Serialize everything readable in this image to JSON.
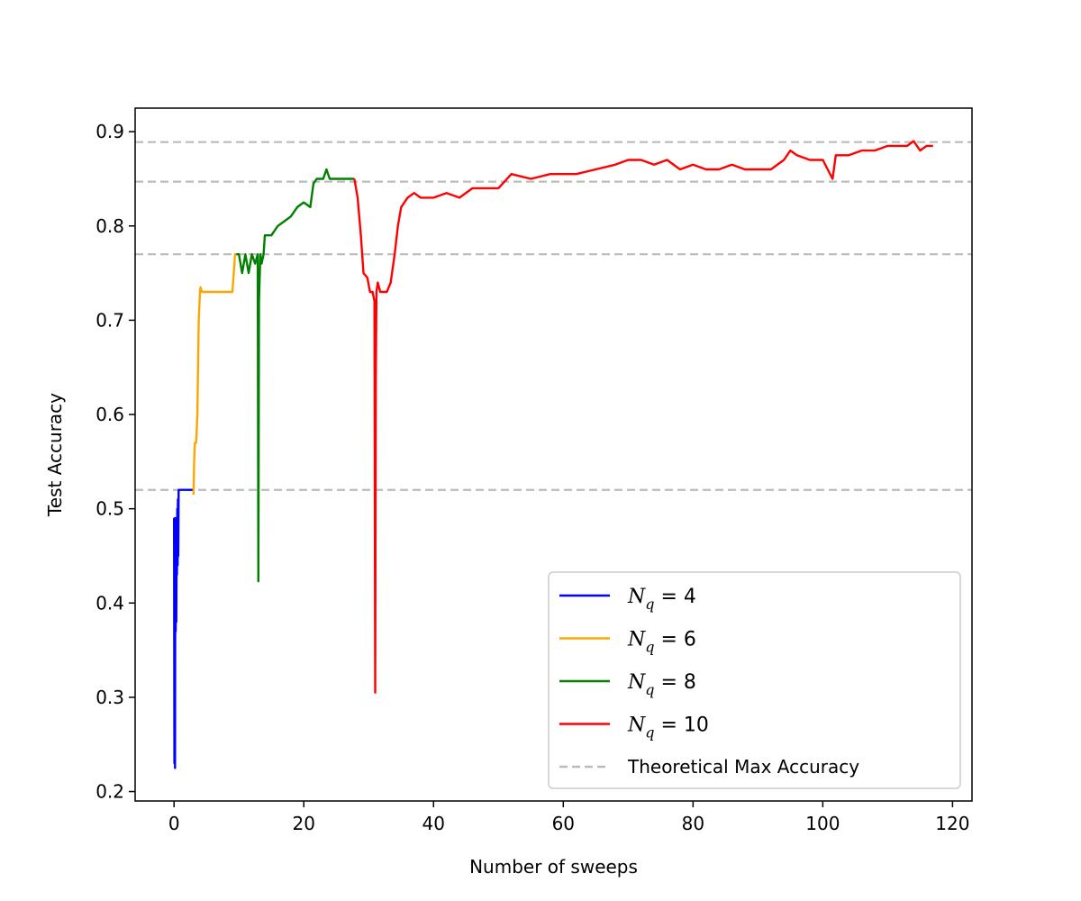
{
  "chart_data": {
    "type": "line",
    "title": "",
    "xlabel": "Number of sweeps",
    "ylabel": "Test Accuracy",
    "xlim": [
      -6,
      123
    ],
    "ylim": [
      0.19,
      0.925
    ],
    "x_ticks": [
      0,
      20,
      40,
      60,
      80,
      100,
      120
    ],
    "y_ticks": [
      0.2,
      0.3,
      0.4,
      0.5,
      0.6,
      0.7,
      0.8,
      0.9
    ],
    "x_tick_labels": [
      "0",
      "20",
      "40",
      "60",
      "80",
      "100",
      "120"
    ],
    "y_tick_labels": [
      "0.2",
      "0.3",
      "0.4",
      "0.5",
      "0.6",
      "0.7",
      "0.8",
      "0.9"
    ],
    "grid": false,
    "legend_position": "lower-right",
    "series": [
      {
        "name": "N_q = 4",
        "legend_base": "N",
        "legend_sub": "q",
        "legend_rest": " = 4",
        "color": "#0000ff",
        "x": [
          0,
          0.05,
          0.1,
          0.15,
          0.2,
          0.25,
          0.3,
          0.35,
          0.4,
          0.45,
          0.5,
          0.55,
          0.6,
          0.65,
          0.7,
          0.8,
          1.0,
          2.0,
          3.0
        ],
        "y": [
          0.49,
          0.23,
          0.49,
          0.225,
          0.48,
          0.37,
          0.49,
          0.38,
          0.47,
          0.43,
          0.5,
          0.44,
          0.51,
          0.45,
          0.52,
          0.52,
          0.52,
          0.52,
          0.52
        ]
      },
      {
        "name": "N_q = 6",
        "legend_base": "N",
        "legend_sub": "q",
        "legend_rest": " = 6",
        "color": "#ffa500",
        "x": [
          3.0,
          3.1,
          3.2,
          3.4,
          3.6,
          3.8,
          4.0,
          4.1,
          4.3,
          4.5,
          5.0,
          6.0,
          7.0,
          8.0,
          9.0,
          9.2,
          9.4,
          9.6
        ],
        "y": [
          0.515,
          0.55,
          0.57,
          0.57,
          0.6,
          0.7,
          0.73,
          0.735,
          0.73,
          0.73,
          0.73,
          0.73,
          0.73,
          0.73,
          0.73,
          0.75,
          0.77,
          0.77
        ]
      },
      {
        "name": "N_q = 8",
        "legend_base": "N",
        "legend_sub": "q",
        "legend_rest": " = 8",
        "color": "#007f00",
        "x": [
          9.6,
          10.0,
          10.5,
          11.0,
          11.5,
          12.0,
          12.5,
          12.9,
          13.0,
          13.1,
          13.3,
          13.5,
          13.8,
          14.0,
          15.0,
          16.0,
          17.0,
          18.0,
          19.0,
          20.0,
          21.0,
          21.5,
          22.0,
          23.0,
          23.5,
          24.0,
          25.0,
          26.0,
          27.0,
          27.8
        ],
        "y": [
          0.77,
          0.77,
          0.75,
          0.77,
          0.75,
          0.77,
          0.76,
          0.77,
          0.423,
          0.72,
          0.77,
          0.76,
          0.77,
          0.79,
          0.79,
          0.8,
          0.805,
          0.81,
          0.82,
          0.825,
          0.82,
          0.845,
          0.85,
          0.85,
          0.86,
          0.85,
          0.85,
          0.85,
          0.85,
          0.85
        ]
      },
      {
        "name": "N_q = 10",
        "legend_base": "N",
        "legend_sub": "q",
        "legend_rest": " = 10",
        "color": "#ff0000",
        "x": [
          27.8,
          28.3,
          28.8,
          29.2,
          29.8,
          30.2,
          30.6,
          30.9,
          31.0,
          31.1,
          31.2,
          31.4,
          31.8,
          32.2,
          32.8,
          33.4,
          34.0,
          34.5,
          35.0,
          36.0,
          37.0,
          38.0,
          40.0,
          42.0,
          44.0,
          46.0,
          48.0,
          50.0,
          52.0,
          55.0,
          58.0,
          60.0,
          62.0,
          65.0,
          68.0,
          70.0,
          72.0,
          74.0,
          76.0,
          78.0,
          80.0,
          82.0,
          84.0,
          86.0,
          88.0,
          90.0,
          92.0,
          94.0,
          95.0,
          96.0,
          98.0,
          100.0,
          101.5,
          102.0,
          104.0,
          106.0,
          108.0,
          110.0,
          112.0,
          113.0,
          114.0,
          115.0,
          116.0,
          117.0
        ],
        "y": [
          0.85,
          0.83,
          0.79,
          0.75,
          0.745,
          0.73,
          0.73,
          0.72,
          0.305,
          0.64,
          0.73,
          0.74,
          0.73,
          0.73,
          0.73,
          0.74,
          0.77,
          0.8,
          0.82,
          0.83,
          0.835,
          0.83,
          0.83,
          0.835,
          0.83,
          0.84,
          0.84,
          0.84,
          0.855,
          0.85,
          0.855,
          0.855,
          0.855,
          0.86,
          0.865,
          0.87,
          0.87,
          0.865,
          0.87,
          0.86,
          0.865,
          0.86,
          0.86,
          0.865,
          0.86,
          0.86,
          0.86,
          0.87,
          0.88,
          0.875,
          0.87,
          0.87,
          0.85,
          0.875,
          0.875,
          0.88,
          0.88,
          0.885,
          0.885,
          0.885,
          0.89,
          0.88,
          0.885,
          0.885
        ]
      }
    ],
    "reference_lines": {
      "name": "Theoretical Max Accuracy",
      "color": "#bbbbbb",
      "style": "dashed",
      "y": [
        0.52,
        0.77,
        0.847,
        0.889
      ]
    }
  }
}
